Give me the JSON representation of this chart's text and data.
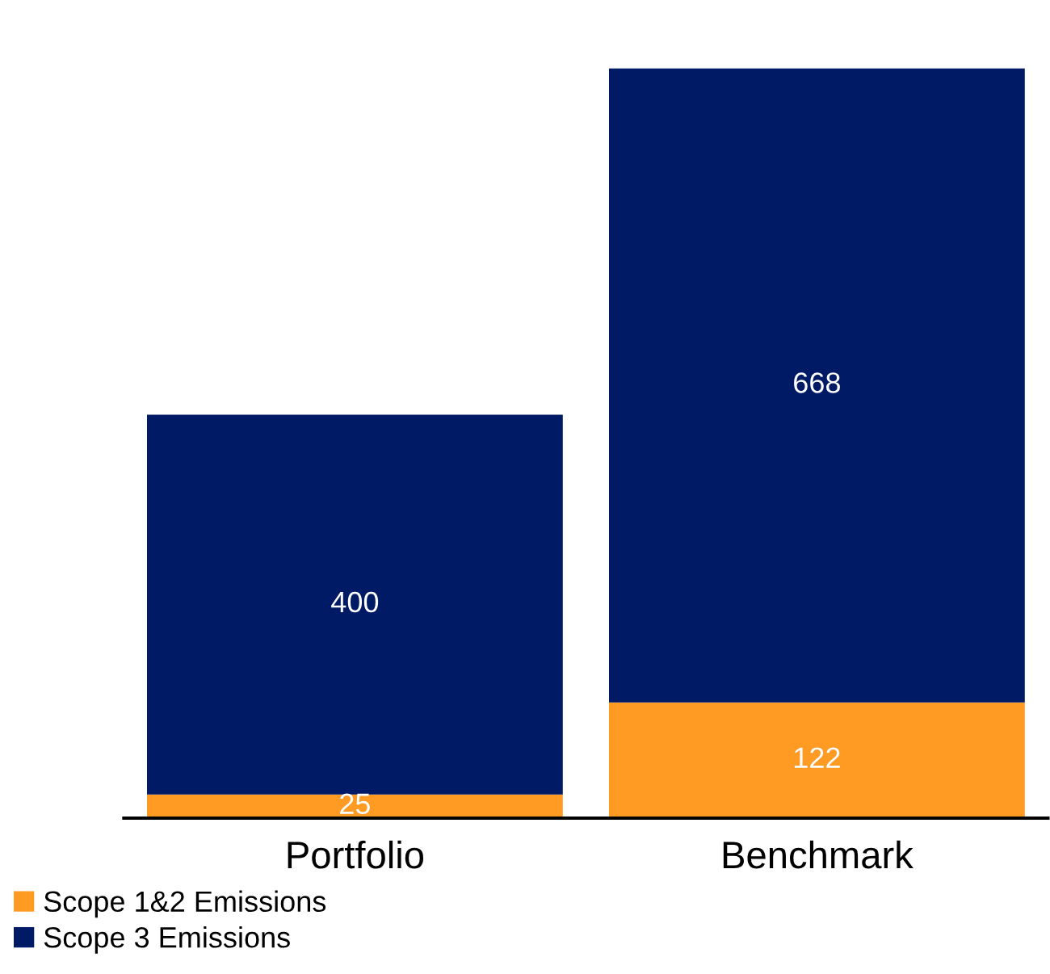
{
  "chart_data": {
    "type": "bar",
    "stacked": true,
    "categories": [
      "Portfolio",
      "Benchmark"
    ],
    "series": [
      {
        "name": "Scope 1&2 Emissions",
        "color": "#ff9a22",
        "values": [
          25,
          122
        ]
      },
      {
        "name": "Scope 3 Emissions",
        "color": "#001a66",
        "values": [
          400,
          668
        ]
      }
    ],
    "data_labels": true,
    "legend": "bottom left",
    "grid": false,
    "tick_labels": "x"
  }
}
